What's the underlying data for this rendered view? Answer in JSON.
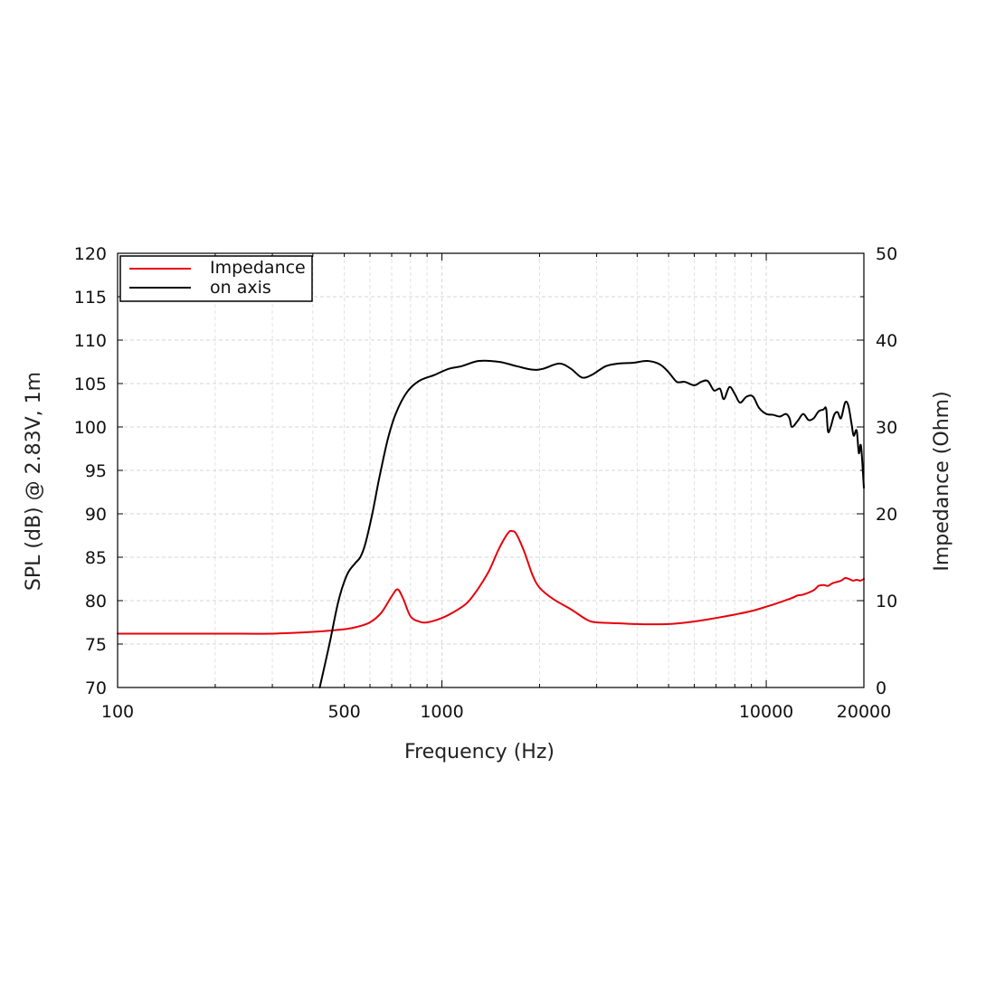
{
  "chart_data": {
    "type": "line",
    "xlabel": "Frequency (Hz)",
    "ylabel": "SPL (dB) @ 2.83V, 1m",
    "y2label": "Impedance (Ohm)",
    "x_scale": "log",
    "xlim": [
      100,
      20000
    ],
    "ylim": [
      70,
      120
    ],
    "y2lim": [
      0,
      50
    ],
    "x_ticks": [
      100,
      500,
      1000,
      10000,
      20000
    ],
    "y_ticks": [
      70,
      75,
      80,
      85,
      90,
      95,
      100,
      105,
      110,
      115,
      120
    ],
    "y2_ticks": [
      0,
      10,
      20,
      30,
      40,
      50
    ],
    "grid": true,
    "legend_position": "top-left",
    "series": [
      {
        "name": "Impedance",
        "axis": "right",
        "color": "#e8000b",
        "points": [
          [
            100,
            6.2
          ],
          [
            200,
            6.2
          ],
          [
            300,
            6.2
          ],
          [
            400,
            6.4
          ],
          [
            500,
            6.7
          ],
          [
            550,
            7.0
          ],
          [
            600,
            7.5
          ],
          [
            650,
            8.6
          ],
          [
            700,
            10.5
          ],
          [
            730,
            11.3
          ],
          [
            760,
            10.2
          ],
          [
            800,
            8.2
          ],
          [
            850,
            7.6
          ],
          [
            900,
            7.5
          ],
          [
            1000,
            8.0
          ],
          [
            1100,
            8.8
          ],
          [
            1200,
            9.8
          ],
          [
            1300,
            11.5
          ],
          [
            1400,
            13.5
          ],
          [
            1500,
            16.0
          ],
          [
            1600,
            17.8
          ],
          [
            1650,
            18.0
          ],
          [
            1700,
            17.6
          ],
          [
            1800,
            15.5
          ],
          [
            1900,
            13.0
          ],
          [
            2000,
            11.5
          ],
          [
            2200,
            10.2
          ],
          [
            2500,
            9.0
          ],
          [
            2800,
            7.8
          ],
          [
            3000,
            7.5
          ],
          [
            3500,
            7.4
          ],
          [
            4000,
            7.3
          ],
          [
            5000,
            7.3
          ],
          [
            6000,
            7.6
          ],
          [
            7000,
            8.0
          ],
          [
            8000,
            8.4
          ],
          [
            9000,
            8.8
          ],
          [
            10000,
            9.3
          ],
          [
            11000,
            9.8
          ],
          [
            12000,
            10.3
          ],
          [
            12500,
            10.6
          ],
          [
            13000,
            10.7
          ],
          [
            14000,
            11.2
          ],
          [
            14500,
            11.7
          ],
          [
            15000,
            11.8
          ],
          [
            15500,
            11.7
          ],
          [
            16000,
            12.0
          ],
          [
            17000,
            12.3
          ],
          [
            17500,
            12.6
          ],
          [
            18000,
            12.5
          ],
          [
            18500,
            12.3
          ],
          [
            19000,
            12.4
          ],
          [
            19500,
            12.3
          ],
          [
            20000,
            12.5
          ]
        ]
      },
      {
        "name": "on axis",
        "axis": "left",
        "color": "#000000",
        "points": [
          [
            420,
            70.0
          ],
          [
            450,
            75.0
          ],
          [
            480,
            80.0
          ],
          [
            510,
            83.0
          ],
          [
            540,
            84.3
          ],
          [
            560,
            85.0
          ],
          [
            580,
            86.5
          ],
          [
            610,
            90.0
          ],
          [
            640,
            94.0
          ],
          [
            680,
            98.5
          ],
          [
            720,
            101.5
          ],
          [
            780,
            104.0
          ],
          [
            850,
            105.3
          ],
          [
            950,
            106.0
          ],
          [
            1050,
            106.7
          ],
          [
            1150,
            107.0
          ],
          [
            1300,
            107.6
          ],
          [
            1500,
            107.5
          ],
          [
            1700,
            107.0
          ],
          [
            1900,
            106.6
          ],
          [
            2050,
            106.7
          ],
          [
            2300,
            107.3
          ],
          [
            2500,
            106.7
          ],
          [
            2700,
            105.7
          ],
          [
            2900,
            106.0
          ],
          [
            3200,
            107.0
          ],
          [
            3500,
            107.3
          ],
          [
            3900,
            107.4
          ],
          [
            4300,
            107.6
          ],
          [
            4700,
            107.2
          ],
          [
            5000,
            106.3
          ],
          [
            5300,
            105.2
          ],
          [
            5600,
            105.2
          ],
          [
            6000,
            104.8
          ],
          [
            6300,
            105.2
          ],
          [
            6600,
            105.3
          ],
          [
            6900,
            104.2
          ],
          [
            7200,
            104.4
          ],
          [
            7400,
            103.2
          ],
          [
            7700,
            104.6
          ],
          [
            8000,
            103.8
          ],
          [
            8300,
            102.8
          ],
          [
            8700,
            103.5
          ],
          [
            9100,
            103.5
          ],
          [
            9500,
            102.2
          ],
          [
            10000,
            101.5
          ],
          [
            10500,
            101.4
          ],
          [
            11000,
            101.2
          ],
          [
            11500,
            101.5
          ],
          [
            11800,
            101.0
          ],
          [
            12000,
            100.0
          ],
          [
            12500,
            100.7
          ],
          [
            13000,
            101.5
          ],
          [
            13500,
            100.8
          ],
          [
            14000,
            101.0
          ],
          [
            14500,
            101.8
          ],
          [
            15000,
            102.0
          ],
          [
            15300,
            102.1
          ],
          [
            15500,
            99.5
          ],
          [
            15800,
            100.0
          ],
          [
            16200,
            101.4
          ],
          [
            16600,
            101.7
          ],
          [
            17000,
            101.0
          ],
          [
            17500,
            102.8
          ],
          [
            17900,
            102.5
          ],
          [
            18300,
            100.5
          ],
          [
            18600,
            99.0
          ],
          [
            19000,
            99.6
          ],
          [
            19300,
            97.0
          ],
          [
            19600,
            97.8
          ],
          [
            20000,
            93.0
          ]
        ]
      }
    ]
  }
}
